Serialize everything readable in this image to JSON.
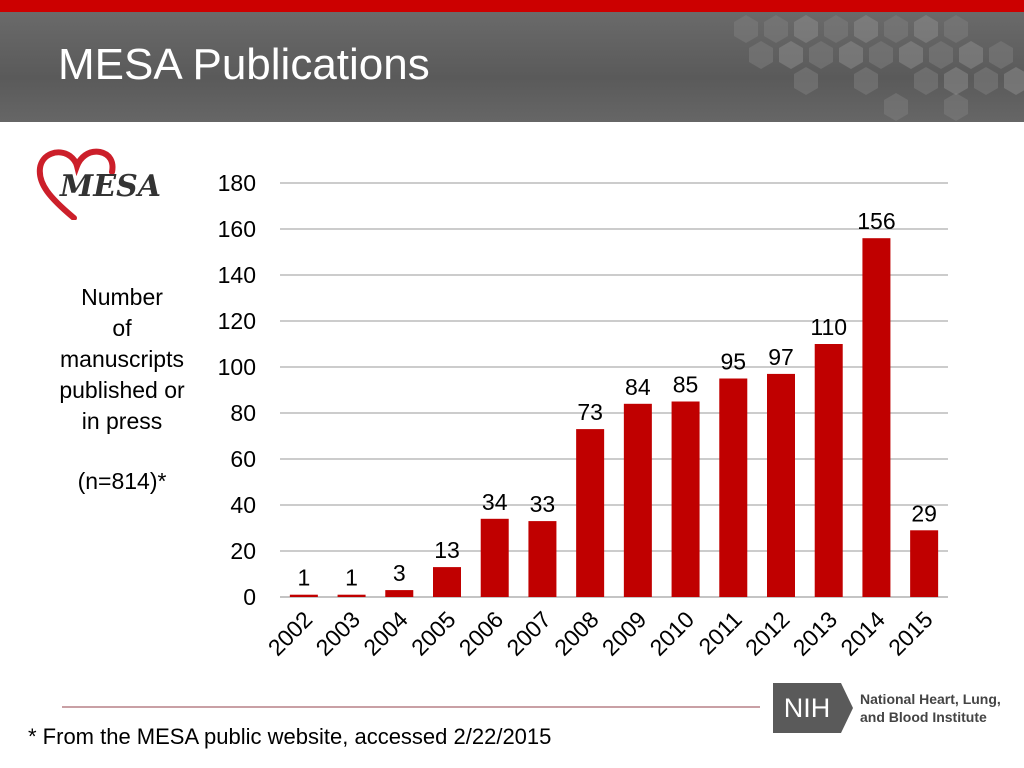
{
  "header": {
    "title": "MESA Publications"
  },
  "logo": {
    "text": "MESA",
    "heart_color": "#cc1f2a"
  },
  "side_label": {
    "lines": [
      "Number",
      "of",
      "manuscripts",
      "published or",
      "in press"
    ],
    "count": "(n=814)*"
  },
  "chart_data": {
    "type": "bar",
    "title": "",
    "xlabel": "",
    "ylabel": "Number of manuscripts published or in press",
    "categories": [
      "2002",
      "2003",
      "2004",
      "2005",
      "2006",
      "2007",
      "2008",
      "2009",
      "2010",
      "2011",
      "2012",
      "2013",
      "2014",
      "2015"
    ],
    "values": [
      1,
      1,
      3,
      13,
      34,
      33,
      73,
      84,
      85,
      95,
      97,
      110,
      156,
      29
    ],
    "ylim": [
      0,
      180
    ],
    "yticks": [
      0,
      20,
      40,
      60,
      80,
      100,
      120,
      140,
      160,
      180
    ],
    "grid": true,
    "bar_color": "#c00000",
    "data_labels": true
  },
  "footer": {
    "note": "* From the MESA public website, accessed 2/22/2015"
  },
  "nih": {
    "abbr": "NIH",
    "name_line1": "National Heart, Lung,",
    "name_line2": "and Blood Institute"
  },
  "colors": {
    "accent": "#cc0000",
    "header_bg": "#5f5f5f"
  }
}
